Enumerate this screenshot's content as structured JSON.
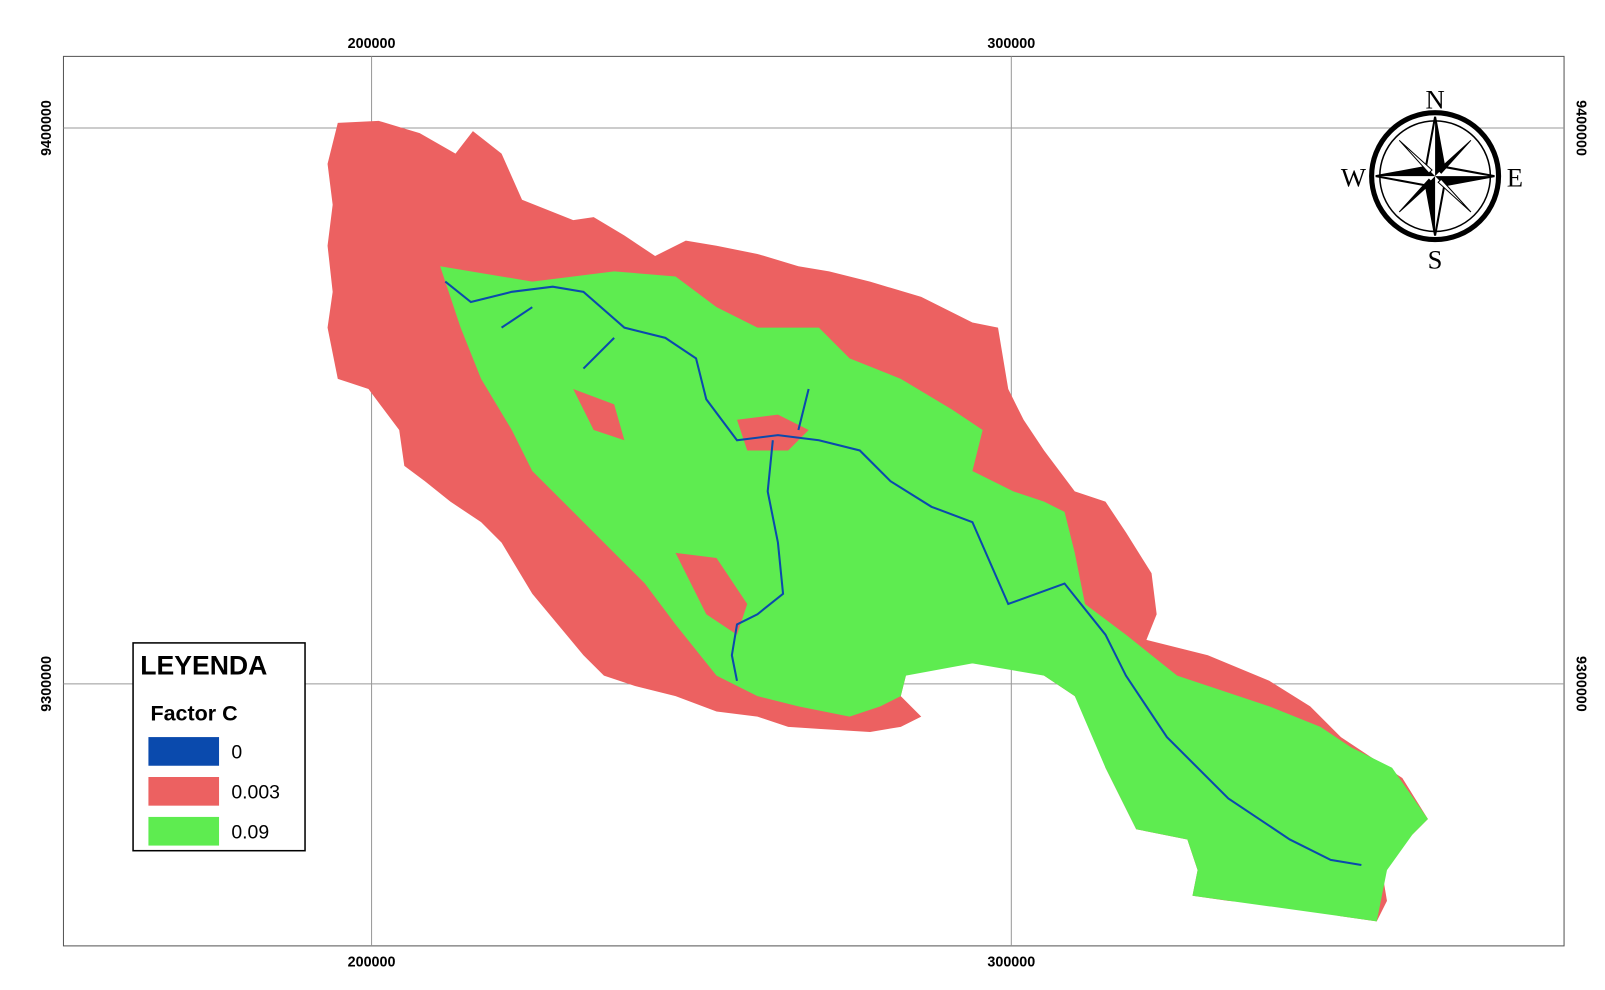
{
  "map": {
    "xlim": [
      151840,
      386400
    ],
    "ylim": [
      9252855,
      9412890
    ],
    "xticks": [
      200000,
      300000
    ],
    "yticks": [
      9400000,
      9300000
    ],
    "grid": true,
    "compass": {
      "north": "N",
      "south": "S",
      "east": "E",
      "west": "W"
    },
    "legend": {
      "title": "LEYENDA",
      "subtitle": "Factor C",
      "items": [
        {
          "value": 0,
          "color": "#0a4aad"
        },
        {
          "value": 0.003,
          "color": "#ec6161"
        },
        {
          "value": 0.09,
          "color": "#5eec50"
        }
      ]
    }
  }
}
